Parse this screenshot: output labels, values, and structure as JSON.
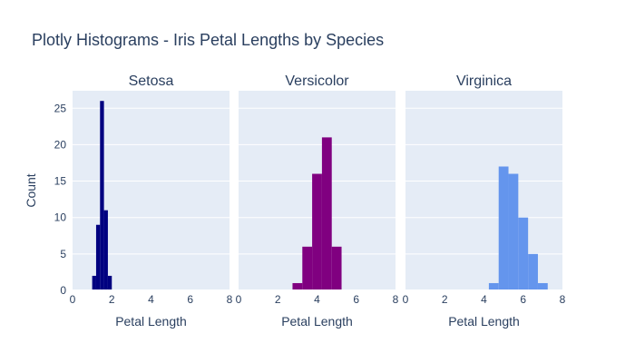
{
  "chart_data": {
    "type": "histogram",
    "title": "Plotly Histograms - Iris Petal Lengths by Species",
    "ylabel": "Count",
    "ylim": [
      0,
      27.4
    ],
    "yticks": [
      0,
      5,
      10,
      15,
      20,
      25
    ],
    "xlim": [
      0,
      8
    ],
    "xticks": [
      0,
      2,
      4,
      6,
      8
    ],
    "grid": true,
    "legend": "none",
    "plot_background": "#E5ECF6",
    "subplots": [
      {
        "name": "Setosa",
        "xlabel": "Petal Length",
        "color": "#000080",
        "bins": [
          {
            "x0": 1.0,
            "x1": 1.2,
            "count": 2
          },
          {
            "x0": 1.2,
            "x1": 1.4,
            "count": 9
          },
          {
            "x0": 1.4,
            "x1": 1.6,
            "count": 26
          },
          {
            "x0": 1.6,
            "x1": 1.8,
            "count": 11
          },
          {
            "x0": 1.8,
            "x1": 2.0,
            "count": 2
          }
        ]
      },
      {
        "name": "Versicolor",
        "xlabel": "Petal Length",
        "color": "#800080",
        "bins": [
          {
            "x0": 2.75,
            "x1": 3.25,
            "count": 1
          },
          {
            "x0": 3.25,
            "x1": 3.75,
            "count": 6
          },
          {
            "x0": 3.75,
            "x1": 4.25,
            "count": 16
          },
          {
            "x0": 4.25,
            "x1": 4.75,
            "count": 21
          },
          {
            "x0": 4.75,
            "x1": 5.25,
            "count": 6
          }
        ]
      },
      {
        "name": "Virginica",
        "xlabel": "Petal Length",
        "color": "#6495ED",
        "bins": [
          {
            "x0": 4.25,
            "x1": 4.75,
            "count": 1
          },
          {
            "x0": 4.75,
            "x1": 5.25,
            "count": 17
          },
          {
            "x0": 5.25,
            "x1": 5.75,
            "count": 16
          },
          {
            "x0": 5.75,
            "x1": 6.25,
            "count": 10
          },
          {
            "x0": 6.25,
            "x1": 6.75,
            "count": 5
          },
          {
            "x0": 6.75,
            "x1": 7.25,
            "count": 1
          }
        ]
      }
    ]
  }
}
